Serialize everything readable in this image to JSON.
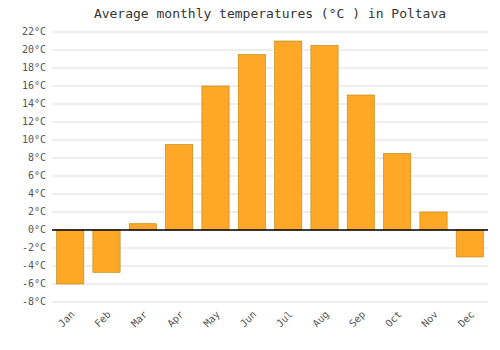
{
  "chart_data": {
    "type": "bar",
    "title": "Average monthly temperatures (°C ) in Poltava",
    "categories": [
      "Jan",
      "Feb",
      "Mar",
      "Apr",
      "May",
      "Jun",
      "Jul",
      "Aug",
      "Sep",
      "Oct",
      "Nov",
      "Dec"
    ],
    "values": [
      -6.0,
      -4.7,
      0.7,
      9.5,
      16.0,
      19.5,
      21.0,
      20.5,
      15.0,
      8.5,
      2.0,
      -3.0
    ],
    "color": "#FFA726",
    "ylim": [
      -8,
      22
    ],
    "yticks": [
      {
        "value": -8,
        "label": "-8°C"
      },
      {
        "value": -6,
        "label": "-6°C"
      },
      {
        "value": -4,
        "label": "-4°C"
      },
      {
        "value": -2,
        "label": "-2°C"
      },
      {
        "value": 0,
        "label": "0°C"
      },
      {
        "value": 2,
        "label": "2°C"
      },
      {
        "value": 4,
        "label": "4°C"
      },
      {
        "value": 6,
        "label": "6°C"
      },
      {
        "value": 8,
        "label": "8°C"
      },
      {
        "value": 10,
        "label": "10°C"
      },
      {
        "value": 12,
        "label": "12°C"
      },
      {
        "value": 14,
        "label": "14°C"
      },
      {
        "value": 16,
        "label": "16°C"
      },
      {
        "value": 18,
        "label": "18°C"
      },
      {
        "value": 20,
        "label": "20°C"
      },
      {
        "value": 22,
        "label": "22°C"
      }
    ],
    "grid": true
  }
}
